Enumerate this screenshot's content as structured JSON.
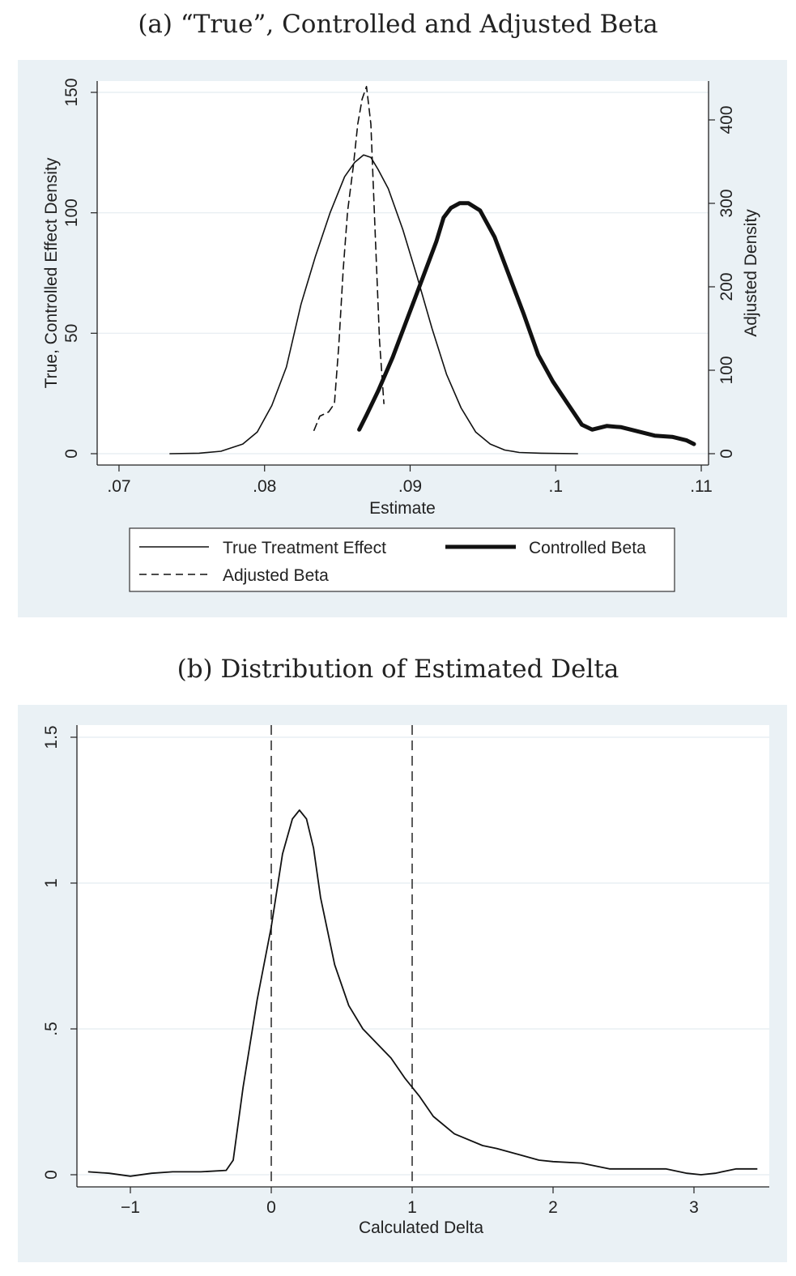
{
  "chart_data": [
    {
      "type": "line",
      "title": "(a) “True”, Controlled and Adjusted Beta",
      "xlabel": "Estimate",
      "ylabel": "True, Controlled Effect Density",
      "y2label": "Adjusted Density",
      "xlim": [
        0.07,
        0.11
      ],
      "ylim": [
        0,
        150
      ],
      "y2lim": [
        0,
        440
      ],
      "xticks": [
        {
          "value": 0.07,
          "label": ".07"
        },
        {
          "value": 0.08,
          "label": ".08"
        },
        {
          "value": 0.09,
          "label": ".09"
        },
        {
          "value": 0.1,
          "label": ".1"
        },
        {
          "value": 0.11,
          "label": ".11"
        }
      ],
      "yticks": [
        {
          "value": 0,
          "label": "0"
        },
        {
          "value": 50,
          "label": "50"
        },
        {
          "value": 100,
          "label": "100"
        },
        {
          "value": 150,
          "label": "150"
        }
      ],
      "y2ticks": [
        {
          "value": 0,
          "label": "0"
        },
        {
          "value": 100,
          "label": "100"
        },
        {
          "value": 200,
          "label": "200"
        },
        {
          "value": 300,
          "label": "300"
        },
        {
          "value": 400,
          "label": "400"
        }
      ],
      "grid": true,
      "legend_position": "bottom",
      "series": [
        {
          "name": "True Treatment Effect",
          "style": "thin",
          "axis": "left",
          "x": [
            0.0735,
            0.0755,
            0.077,
            0.0785,
            0.0795,
            0.0805,
            0.0815,
            0.0825,
            0.0835,
            0.0845,
            0.0855,
            0.0862,
            0.0868,
            0.0873,
            0.0878,
            0.0885,
            0.0895,
            0.0905,
            0.0915,
            0.0925,
            0.0935,
            0.0945,
            0.0955,
            0.0965,
            0.0975,
            0.099,
            0.1015
          ],
          "values": [
            0,
            0.2,
            1,
            4,
            9,
            20,
            36,
            62,
            82,
            100,
            115,
            121,
            124,
            123,
            118,
            110,
            93,
            73,
            52,
            33,
            19,
            9,
            4,
            1.5,
            0.5,
            0.2,
            0
          ]
        },
        {
          "name": "Controlled Beta",
          "style": "thick",
          "axis": "left",
          "x": [
            0.0865,
            0.087,
            0.0878,
            0.0888,
            0.0898,
            0.0908,
            0.0918,
            0.0923,
            0.0928,
            0.0934,
            0.094,
            0.0948,
            0.0958,
            0.0968,
            0.0978,
            0.0988,
            0.0998,
            0.1008,
            0.1018,
            0.1025,
            0.1035,
            0.1045,
            0.1055,
            0.1068,
            0.108,
            0.109,
            0.1095
          ],
          "values": [
            10,
            16,
            26,
            40,
            56,
            72,
            88,
            98,
            102,
            104,
            104,
            101,
            90,
            74,
            58,
            41,
            30,
            21,
            12,
            10,
            11.5,
            11,
            9.5,
            7.5,
            7,
            5.5,
            4
          ]
        },
        {
          "name": "Adjusted Beta",
          "style": "dashed",
          "axis": "right",
          "x": [
            0.0834,
            0.0838,
            0.0844,
            0.0848,
            0.0851,
            0.0854,
            0.0857,
            0.0861,
            0.0864,
            0.0867,
            0.087,
            0.0873,
            0.0876,
            0.0879,
            0.0882
          ],
          "values": [
            28,
            45,
            50,
            60,
            130,
            220,
            290,
            345,
            395,
            425,
            440,
            395,
            265,
            135,
            60
          ]
        }
      ],
      "legend": [
        "True Treatment Effect",
        "Controlled Beta",
        "Adjusted Beta"
      ]
    },
    {
      "type": "line",
      "title": "(b) Distribution of Estimated Delta",
      "xlabel": "Calculated Delta",
      "ylabel": "",
      "xlim": [
        -1.35,
        3.5
      ],
      "ylim": [
        0,
        1.5
      ],
      "xticks": [
        {
          "value": -1,
          "label": "−1"
        },
        {
          "value": 0,
          "label": "0"
        },
        {
          "value": 1,
          "label": "1"
        },
        {
          "value": 2,
          "label": "2"
        },
        {
          "value": 3,
          "label": "3"
        }
      ],
      "yticks": [
        {
          "value": 0,
          "label": "0"
        },
        {
          "value": 0.5,
          "label": ".5"
        },
        {
          "value": 1,
          "label": "1"
        },
        {
          "value": 1.5,
          "label": "1.5"
        }
      ],
      "grid": true,
      "reference_lines_x": [
        0,
        1
      ],
      "series": [
        {
          "name": "",
          "x": [
            -1.3,
            -1.15,
            -1.0,
            -0.85,
            -0.7,
            -0.5,
            -0.32,
            -0.27,
            -0.2,
            -0.1,
            0,
            0.08,
            0.15,
            0.2,
            0.25,
            0.3,
            0.35,
            0.45,
            0.55,
            0.65,
            0.75,
            0.85,
            0.95,
            1.05,
            1.15,
            1.3,
            1.5,
            1.6,
            1.75,
            1.9,
            2.0,
            2.2,
            2.4,
            2.6,
            2.8,
            2.95,
            3.05,
            3.15,
            3.3,
            3.45
          ],
          "values": [
            0.01,
            0.005,
            -0.005,
            0.005,
            0.01,
            0.01,
            0.015,
            0.05,
            0.3,
            0.6,
            0.85,
            1.1,
            1.22,
            1.25,
            1.22,
            1.12,
            0.95,
            0.72,
            0.58,
            0.5,
            0.45,
            0.4,
            0.33,
            0.27,
            0.2,
            0.14,
            0.1,
            0.09,
            0.07,
            0.05,
            0.045,
            0.04,
            0.02,
            0.02,
            0.02,
            0.005,
            0.0,
            0.005,
            0.02,
            0.02
          ]
        }
      ]
    }
  ]
}
